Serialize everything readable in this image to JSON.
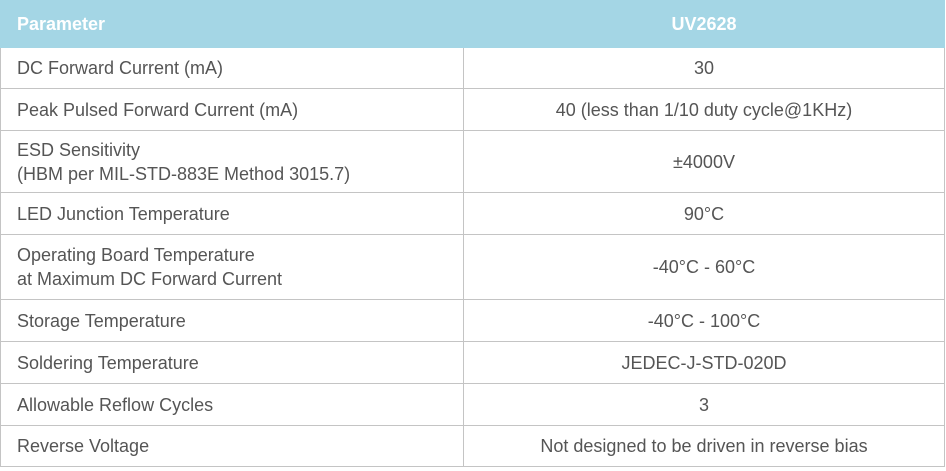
{
  "table": {
    "header": [
      "Parameter",
      "UV2628"
    ],
    "rows": [
      [
        "DC Forward Current (mA)",
        "30"
      ],
      [
        "Peak Pulsed Forward Current (mA)",
        "40 (less than 1/10 duty cycle@1KHz)"
      ],
      [
        "ESD Sensitivity\n(HBM per MIL-STD-883E Method 3015.7)",
        "±4000V"
      ],
      [
        "LED Junction Temperature",
        "90°C"
      ],
      [
        "Operating Board Temperature\nat Maximum DC Forward Current",
        "-40°C - 60°C"
      ],
      [
        "Storage Temperature",
        "-40°C - 100°C"
      ],
      [
        "Soldering Temperature",
        "JEDEC-J-STD-020D"
      ],
      [
        "Allowable Reflow Cycles",
        "3"
      ],
      [
        "Reverse Voltage",
        "Not designed to be driven in reverse bias"
      ]
    ]
  }
}
